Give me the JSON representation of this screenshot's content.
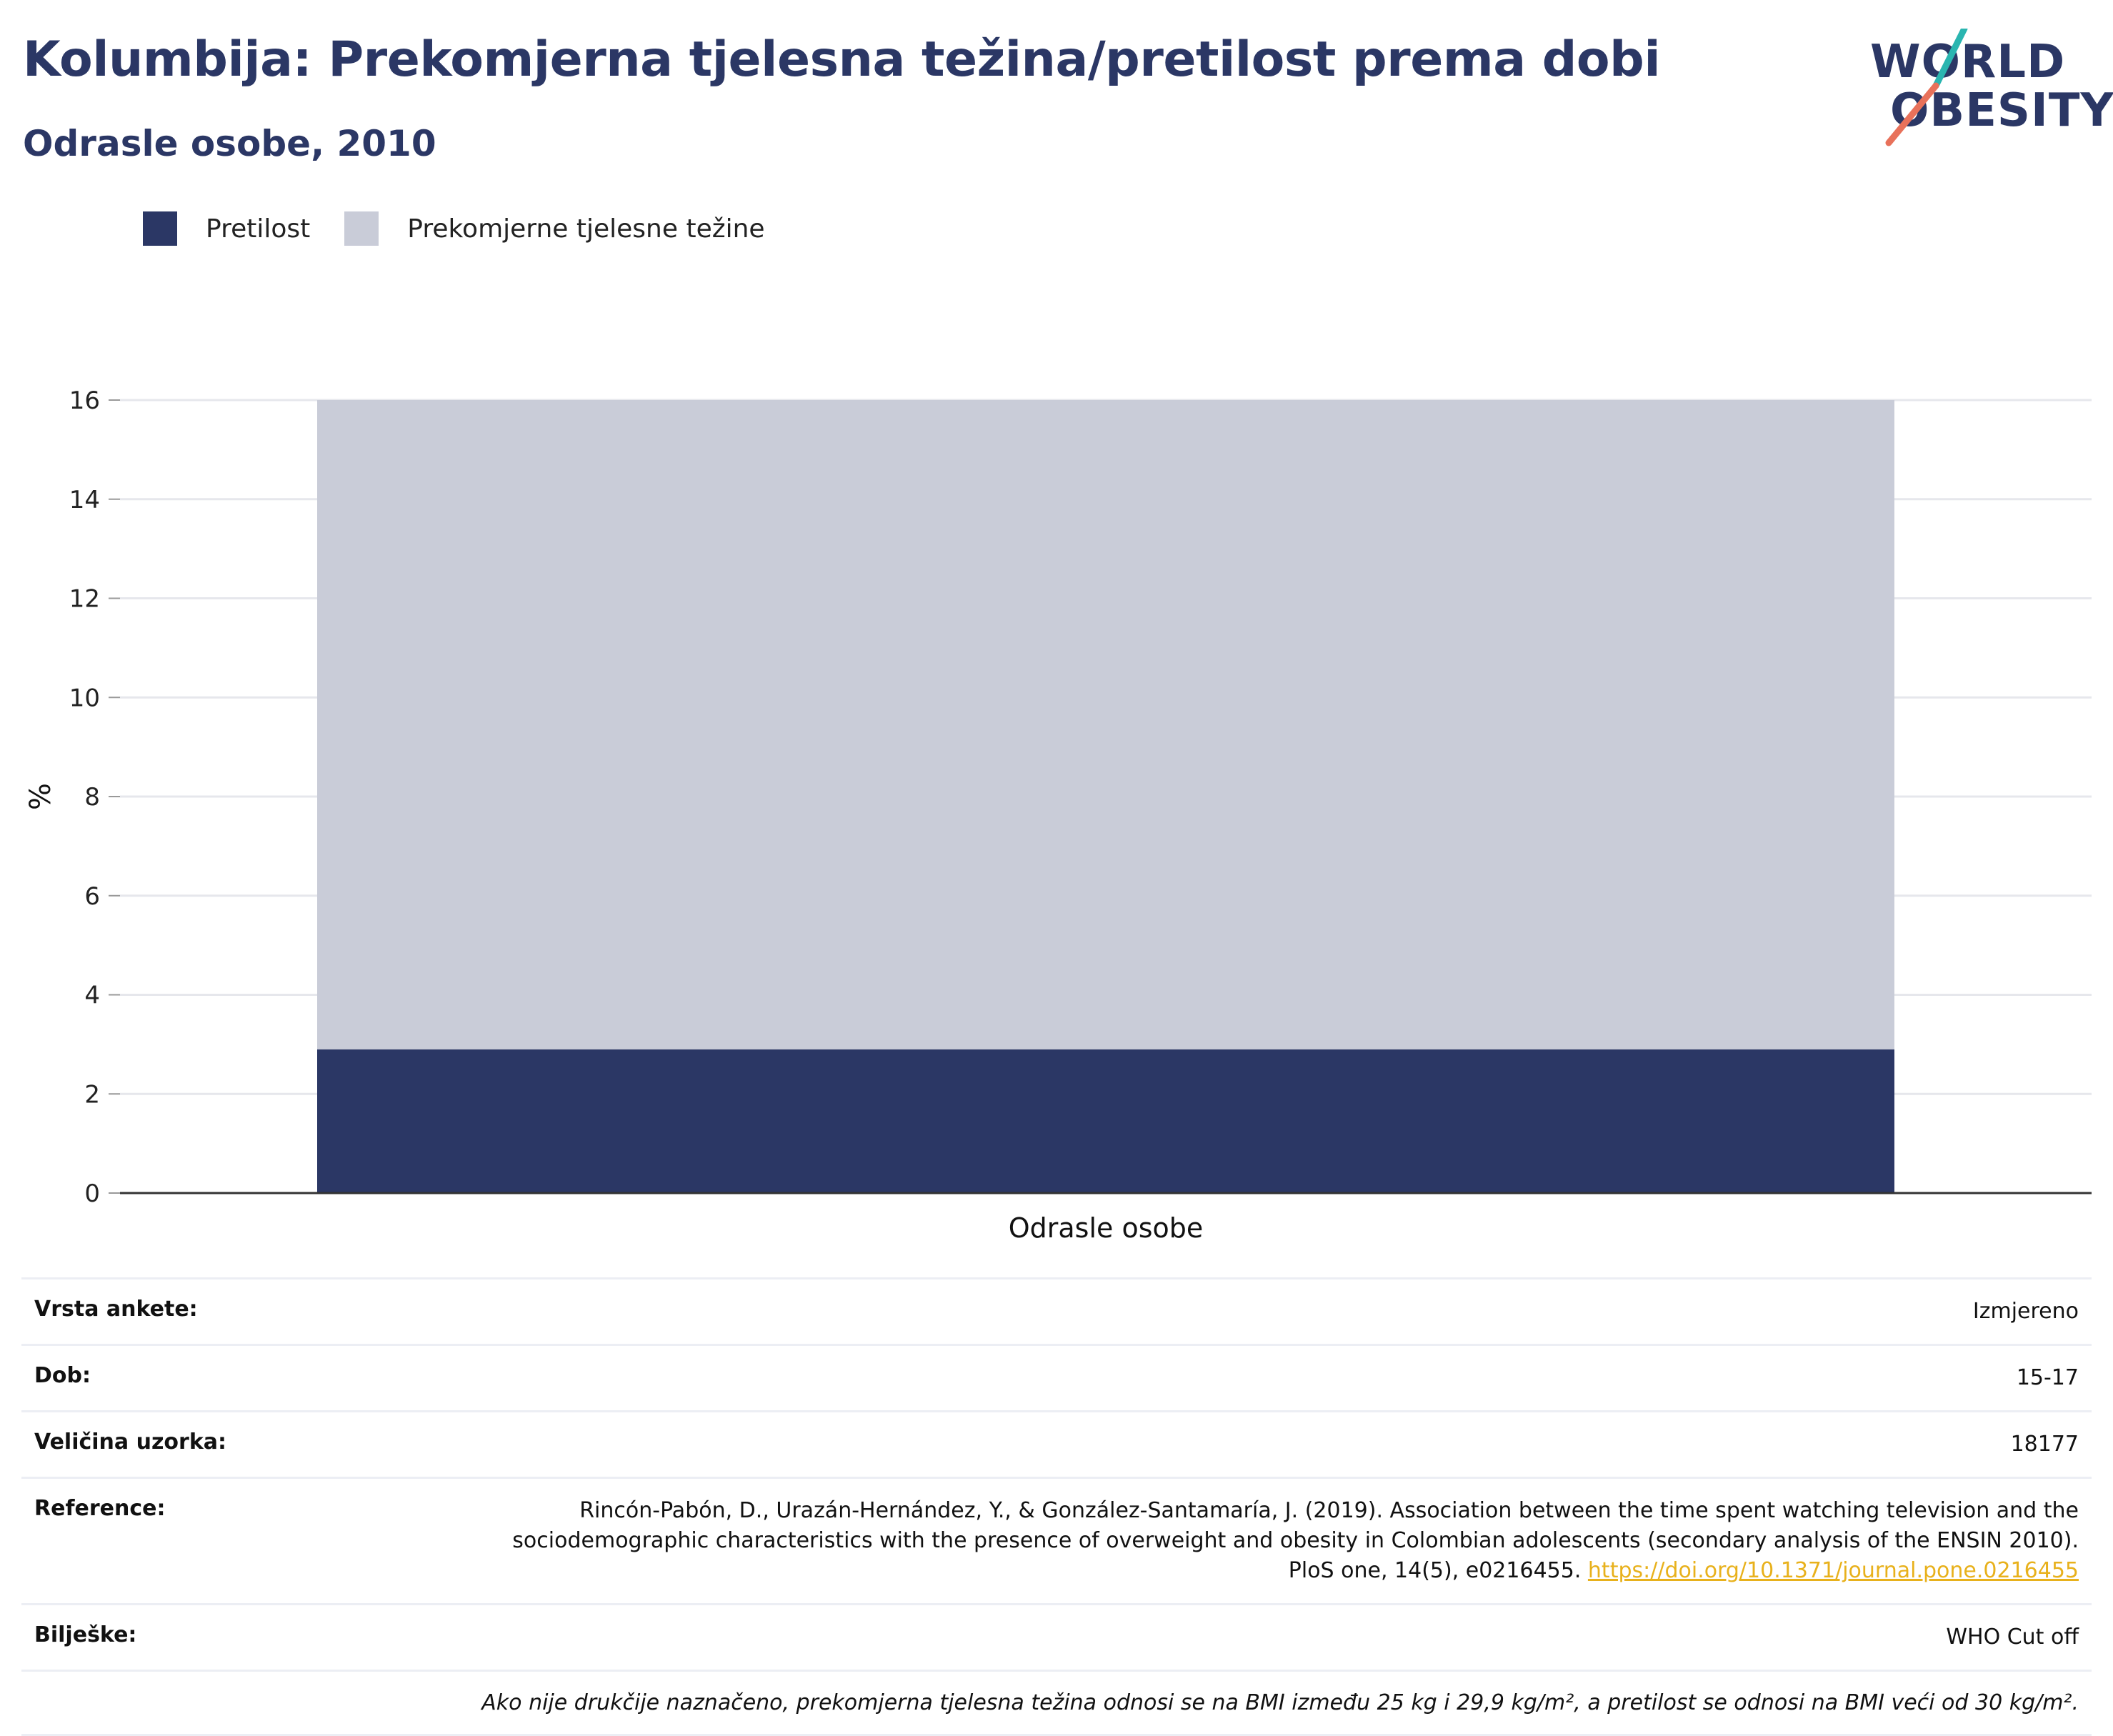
{
  "header": {
    "title": "Kolumbija: Prekomjerna tjelesna težina/pretilost prema dobi",
    "subtitle": "Odrasle osobe, 2010"
  },
  "logo": {
    "line1": "WORLD",
    "line2": "OBESITY"
  },
  "legend": [
    {
      "label": "Pretilost",
      "color": "#2b3765"
    },
    {
      "label": "Prekomjerne tjelesne težine",
      "color": "#c9ccd8"
    }
  ],
  "chart_data": {
    "type": "bar",
    "stacked": true,
    "categories": [
      "Odrasle osobe"
    ],
    "series": [
      {
        "name": "Pretilost",
        "values": [
          2.9
        ],
        "color": "#2b3765"
      },
      {
        "name": "Prekomjerne tjelesne težine",
        "values": [
          13.1
        ],
        "color": "#c9ccd8"
      }
    ],
    "ylabel": "%",
    "ylim": [
      0,
      16
    ],
    "yticks": [
      0,
      2,
      4,
      6,
      8,
      10,
      12,
      14,
      16
    ],
    "grid": true,
    "legend_position": "top-left"
  },
  "info": {
    "rows": [
      {
        "key": "Vrsta ankete:",
        "value": "Izmjereno"
      },
      {
        "key": "Dob:",
        "value": "15-17"
      },
      {
        "key": "Veličina uzorka:",
        "value": "18177"
      },
      {
        "key": "Reference:",
        "value": "Rincón-Pabón, D., Urazán-Hernández, Y., & González-Santamaría, J. (2019). Association between the time spent watching television and the sociodemographic characteristics with the presence of overweight and obesity in Colombian adolescents (secondary analysis of the ENSIN 2010). PloS one, 14(5), e0216455.",
        "link": "https://doi.org/10.1371/journal.pone.0216455"
      },
      {
        "key": "Bilješke:",
        "value": "WHO Cut off"
      }
    ],
    "note": "Ako nije drukčije naznačeno, prekomjerna tjelesna težina odnosi se na BMI između 25 kg i 29,9 kg/m², a pretilost se odnosi na BMI veći od 30 kg/m²."
  }
}
